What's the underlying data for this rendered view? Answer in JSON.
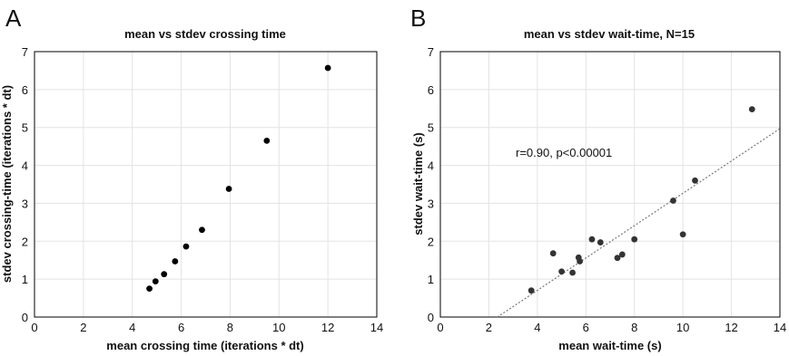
{
  "chart_data": [
    {
      "panel": "A",
      "type": "scatter",
      "title": "mean vs stdev crossing time",
      "xlabel": "mean crossing time (iterations * dt)",
      "ylabel": "stdev crossing-time (iterations * dt)",
      "xlim": [
        0,
        14
      ],
      "ylim": [
        0,
        7
      ],
      "xticks": [
        0,
        2,
        4,
        6,
        8,
        10,
        12,
        14
      ],
      "yticks": [
        0,
        1,
        2,
        3,
        4,
        5,
        6,
        7
      ],
      "grid": true,
      "legend": "none",
      "marker_color": "#000000",
      "points": [
        {
          "x": 4.7,
          "y": 0.75
        },
        {
          "x": 4.95,
          "y": 0.94
        },
        {
          "x": 5.3,
          "y": 1.13
        },
        {
          "x": 5.75,
          "y": 1.47
        },
        {
          "x": 6.2,
          "y": 1.86
        },
        {
          "x": 6.85,
          "y": 2.3
        },
        {
          "x": 7.95,
          "y": 3.38
        },
        {
          "x": 9.5,
          "y": 4.65
        },
        {
          "x": 12.0,
          "y": 6.57
        }
      ]
    },
    {
      "panel": "B",
      "type": "scatter",
      "title": "mean vs stdev wait-time, N=15",
      "xlabel": "mean wait-time (s)",
      "ylabel": "stdev wait-time (s)",
      "xlim": [
        0,
        14
      ],
      "ylim": [
        0,
        7
      ],
      "xticks": [
        0,
        2,
        4,
        6,
        8,
        10,
        12,
        14
      ],
      "yticks": [
        0,
        1,
        2,
        3,
        4,
        5,
        6,
        7
      ],
      "grid": true,
      "legend": "none",
      "marker_color": "#333333",
      "annotation": "r=0.90, p<0.00001",
      "fit_line": {
        "x": [
          2.35,
          14
        ],
        "y": [
          0,
          4.97
        ],
        "color": "#777777",
        "style": "dotted"
      },
      "points": [
        {
          "x": 3.75,
          "y": 0.7
        },
        {
          "x": 4.65,
          "y": 1.68
        },
        {
          "x": 5.0,
          "y": 1.2
        },
        {
          "x": 5.45,
          "y": 1.17
        },
        {
          "x": 5.7,
          "y": 1.57
        },
        {
          "x": 5.75,
          "y": 1.47
        },
        {
          "x": 6.25,
          "y": 2.05
        },
        {
          "x": 6.6,
          "y": 1.97
        },
        {
          "x": 7.3,
          "y": 1.56
        },
        {
          "x": 7.5,
          "y": 1.65
        },
        {
          "x": 8.0,
          "y": 2.05
        },
        {
          "x": 9.6,
          "y": 3.07
        },
        {
          "x": 10.0,
          "y": 2.18
        },
        {
          "x": 10.5,
          "y": 3.6
        },
        {
          "x": 12.85,
          "y": 5.48
        }
      ]
    }
  ]
}
